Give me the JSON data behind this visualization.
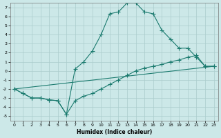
{
  "title": "",
  "xlabel": "Humidex (Indice chaleur)",
  "xlim": [
    -0.5,
    23.5
  ],
  "ylim": [
    -5.5,
    7.5
  ],
  "xticks": [
    0,
    1,
    2,
    3,
    4,
    5,
    6,
    7,
    8,
    9,
    10,
    11,
    12,
    13,
    14,
    15,
    16,
    17,
    18,
    19,
    20,
    21,
    22,
    23
  ],
  "yticks": [
    -5,
    -4,
    -3,
    -2,
    -1,
    0,
    1,
    2,
    3,
    4,
    5,
    6,
    7
  ],
  "background_color": "#cce8e8",
  "grid_color": "#aacccc",
  "line_color": "#1a7a6e",
  "line1_x": [
    0,
    1,
    2,
    3,
    4,
    5,
    6,
    7,
    8,
    9,
    10,
    11,
    12,
    13,
    14,
    15,
    16,
    17,
    18,
    19,
    20,
    21,
    22,
    23
  ],
  "line1_y": [
    -2,
    -2.5,
    -3,
    -3,
    -3.2,
    -3.3,
    -4.8,
    0.2,
    1.0,
    2.2,
    4.0,
    6.3,
    6.5,
    7.5,
    7.5,
    6.5,
    6.3,
    4.5,
    3.5,
    2.5,
    2.5,
    1.5,
    0.5,
    0.5
  ],
  "line2_x": [
    0,
    1,
    2,
    3,
    4,
    5,
    6,
    7,
    8,
    9,
    10,
    11,
    12,
    13,
    14,
    15,
    16,
    17,
    18,
    19,
    20,
    21,
    22,
    23
  ],
  "line2_y": [
    -2,
    -2.5,
    -3,
    -3,
    -3.2,
    -3.3,
    -4.8,
    -3.3,
    -2.8,
    -2.5,
    -2.0,
    -1.5,
    -1.0,
    -0.5,
    0.0,
    0.3,
    0.5,
    0.7,
    1.0,
    1.2,
    1.5,
    1.7,
    0.5,
    0.5
  ],
  "line3_x": [
    0,
    23
  ],
  "line3_y": [
    -2,
    0.5
  ],
  "marker": "+",
  "markersize": 4
}
